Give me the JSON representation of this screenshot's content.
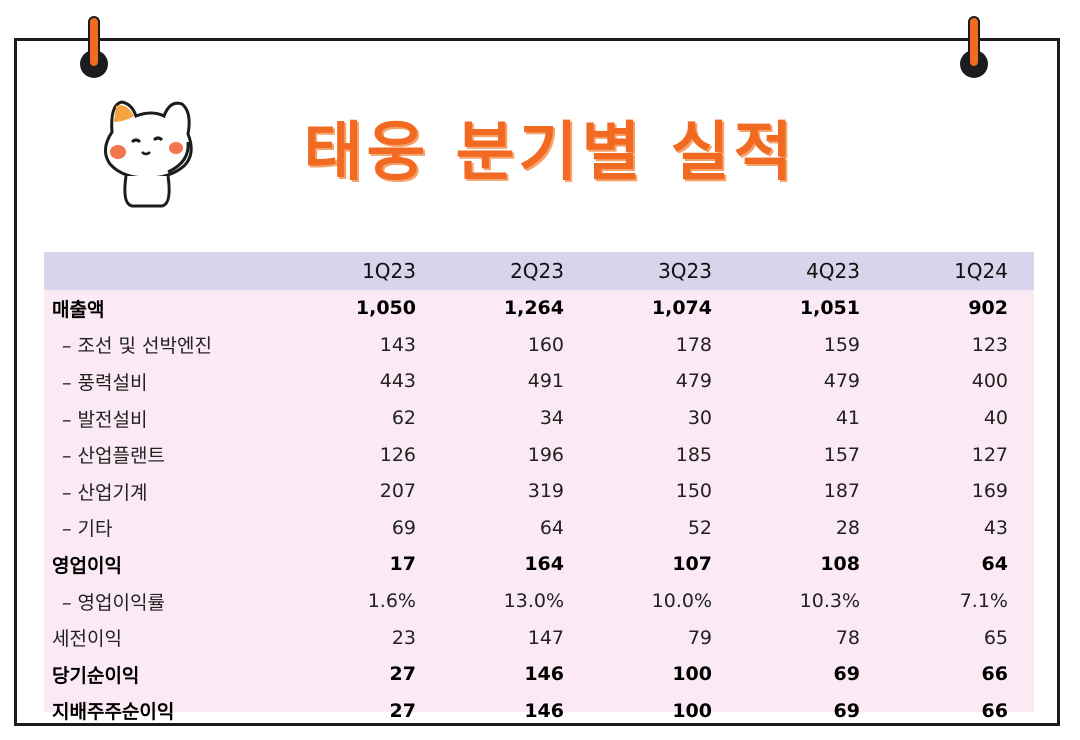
{
  "title": "태웅 분기별 실적",
  "table": {
    "columns": [
      "1Q23",
      "2Q23",
      "3Q23",
      "4Q23",
      "1Q24"
    ],
    "rows": [
      {
        "label": "매출액",
        "bold": true,
        "indent": false,
        "values": [
          "1,050",
          "1,264",
          "1,074",
          "1,051",
          "902"
        ]
      },
      {
        "label": "– 조선 및 선박엔진",
        "bold": false,
        "indent": true,
        "values": [
          "143",
          "160",
          "178",
          "159",
          "123"
        ]
      },
      {
        "label": "– 풍력설비",
        "bold": false,
        "indent": true,
        "values": [
          "443",
          "491",
          "479",
          "479",
          "400"
        ]
      },
      {
        "label": "– 발전설비",
        "bold": false,
        "indent": true,
        "values": [
          "62",
          "34",
          "30",
          "41",
          "40"
        ]
      },
      {
        "label": "– 산업플랜트",
        "bold": false,
        "indent": true,
        "values": [
          "126",
          "196",
          "185",
          "157",
          "127"
        ]
      },
      {
        "label": "– 산업기계",
        "bold": false,
        "indent": true,
        "values": [
          "207",
          "319",
          "150",
          "187",
          "169"
        ]
      },
      {
        "label": "– 기타",
        "bold": false,
        "indent": true,
        "values": [
          "69",
          "64",
          "52",
          "28",
          "43"
        ]
      },
      {
        "label": "영업이익",
        "bold": true,
        "indent": false,
        "values": [
          "17",
          "164",
          "107",
          "108",
          "64"
        ]
      },
      {
        "label": "– 영업이익률",
        "bold": false,
        "indent": true,
        "values": [
          "1.6%",
          "13.0%",
          "10.0%",
          "10.3%",
          "7.1%"
        ]
      },
      {
        "label": "세전이익",
        "bold": false,
        "indent": false,
        "values": [
          "23",
          "147",
          "79",
          "78",
          "65"
        ]
      },
      {
        "label": "당기순이익",
        "bold": true,
        "indent": false,
        "values": [
          "27",
          "146",
          "100",
          "69",
          "66"
        ]
      },
      {
        "label": "지배주주순이익",
        "bold": true,
        "indent": false,
        "values": [
          "27",
          "146",
          "100",
          "69",
          "66"
        ]
      }
    ]
  },
  "colors": {
    "accent": "#f26a21",
    "header_bg": "#d9d3ec",
    "body_bg": "#fbeaf4"
  }
}
